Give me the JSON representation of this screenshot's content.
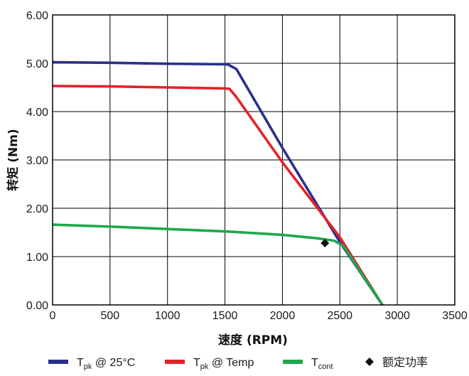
{
  "chart_data": {
    "type": "line",
    "xlabel": "速度 (RPM)",
    "ylabel": "转矩 (Nm)",
    "xlim": [
      0,
      3500
    ],
    "ylim": [
      0,
      6
    ],
    "xticks": [
      "0",
      "500",
      "1000",
      "1500",
      "2000",
      "2500",
      "3000",
      "3500"
    ],
    "yticks": [
      "0.00",
      "1.00",
      "2.00",
      "3.00",
      "4.00",
      "5.00",
      "6.00"
    ],
    "grid": true,
    "legend_position": "bottom",
    "series": [
      {
        "name_main": "T",
        "name_sub": "pk",
        "name_rest": " @ 25°C",
        "color": "#2b2f8c",
        "points": [
          [
            0,
            5.02
          ],
          [
            500,
            5.01
          ],
          [
            1000,
            4.99
          ],
          [
            1500,
            4.98
          ],
          [
            1530,
            4.97
          ],
          [
            1600,
            4.88
          ],
          [
            2000,
            3.25
          ],
          [
            2500,
            1.3
          ],
          [
            2870,
            0.0
          ]
        ]
      },
      {
        "name_main": "T",
        "name_sub": "pk",
        "name_rest": " @ Temp",
        "color": "#e32229",
        "points": [
          [
            0,
            4.53
          ],
          [
            500,
            4.52
          ],
          [
            1000,
            4.5
          ],
          [
            1500,
            4.48
          ],
          [
            1540,
            4.47
          ],
          [
            1600,
            4.3
          ],
          [
            2000,
            2.95
          ],
          [
            2500,
            1.4
          ],
          [
            2870,
            0.0
          ]
        ]
      },
      {
        "name_main": "T",
        "name_sub": "cont",
        "name_rest": "",
        "color": "#1ea84b",
        "points": [
          [
            0,
            1.66
          ],
          [
            500,
            1.62
          ],
          [
            1000,
            1.57
          ],
          [
            1500,
            1.52
          ],
          [
            2000,
            1.45
          ],
          [
            2300,
            1.38
          ],
          [
            2450,
            1.33
          ],
          [
            2530,
            1.22
          ],
          [
            2870,
            0.0
          ]
        ]
      }
    ],
    "markers": [
      {
        "name": "额定功率",
        "shape": "diamond",
        "color": "#111111",
        "x": 2370,
        "y": 1.28
      }
    ]
  }
}
